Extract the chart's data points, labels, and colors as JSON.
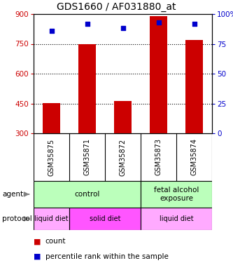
{
  "title": "GDS1660 / AF031880_at",
  "samples": [
    "GSM35875",
    "GSM35871",
    "GSM35872",
    "GSM35873",
    "GSM35874"
  ],
  "counts": [
    452,
    750,
    462,
    890,
    770
  ],
  "percentile_ranks": [
    86,
    92,
    88,
    93,
    92
  ],
  "ylim_left": [
    300,
    900
  ],
  "ylim_right": [
    0,
    100
  ],
  "yticks_left": [
    300,
    450,
    600,
    750,
    900
  ],
  "yticks_right": [
    0,
    25,
    50,
    75,
    100
  ],
  "bar_color": "#cc0000",
  "scatter_color": "#0000cc",
  "agent_spans": [
    [
      0,
      3,
      "control",
      "#bbffbb"
    ],
    [
      3,
      5,
      "fetal alcohol\nexposure",
      "#bbffbb"
    ]
  ],
  "proto_spans": [
    [
      0,
      1,
      "liquid diet",
      "#ffaaff"
    ],
    [
      1,
      3,
      "solid diet",
      "#ff55ff"
    ],
    [
      3,
      5,
      "liquid diet",
      "#ffaaff"
    ]
  ],
  "agent_row_label": "agent",
  "protocol_row_label": "protocol",
  "legend_count_color": "#cc0000",
  "legend_pct_color": "#0000cc",
  "tick_color_left": "#cc0000",
  "tick_color_right": "#0000cc",
  "bg_color": "#ffffff",
  "sample_bg_color": "#cccccc",
  "grid_yticks": [
    450,
    600,
    750
  ]
}
